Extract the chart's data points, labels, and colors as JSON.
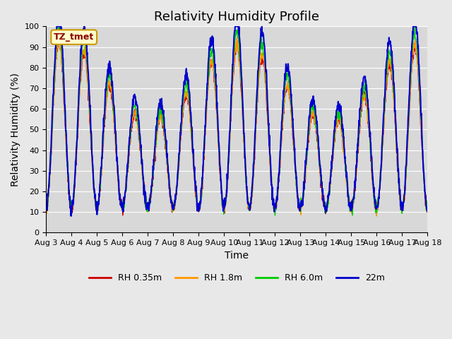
{
  "title": "Relativity Humidity Profile",
  "xlabel": "Time",
  "ylabel": "Relativity Humidity (%)",
  "annotation": "TZ_tmet",
  "ylim": [
    0,
    100
  ],
  "yticks": [
    0,
    10,
    20,
    30,
    40,
    50,
    60,
    70,
    80,
    90,
    100
  ],
  "x_tick_labels": [
    "Aug 3",
    "Aug 4",
    "Aug 5",
    "Aug 6",
    "Aug 7",
    "Aug 8",
    "Aug 9",
    "Aug 10",
    "Aug 11",
    "Aug 12",
    "Aug 13",
    "Aug 14",
    "Aug 15",
    "Aug 16",
    "Aug 17",
    "Aug 18"
  ],
  "num_days": 15,
  "colors": {
    "RH 0.35m": "#cc0000",
    "RH 1.8m": "#ff9900",
    "RH 6.0m": "#00cc00",
    "22m": "#0000cc"
  },
  "background_color": "#e8e8e8",
  "plot_bg_color": "#d8d8d8",
  "annotation_bg": "#ffffcc",
  "annotation_border": "#cc9900",
  "title_fontsize": 13,
  "axis_fontsize": 10,
  "tick_fontsize": 8
}
